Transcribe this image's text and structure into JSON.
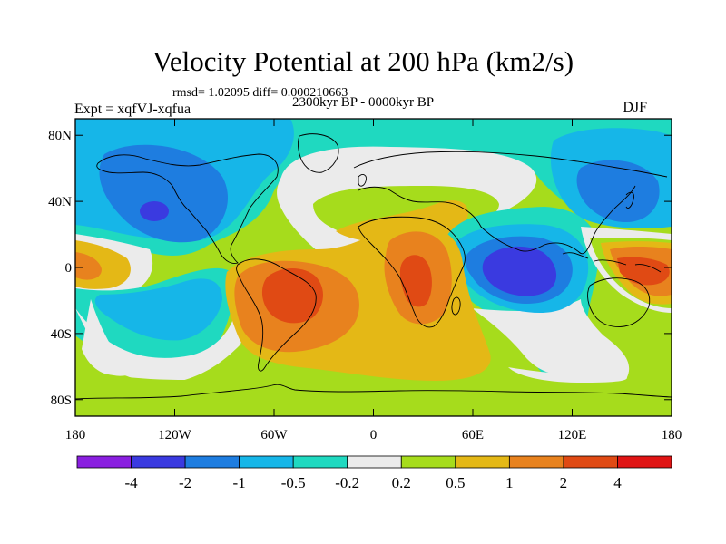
{
  "chart_data": {
    "type": "heatmap",
    "title": "Velocity Potential at 200 hPa (km2/s)",
    "stats": "rmsd= 1.02095 diff= 0.000210663",
    "experiment": "Expt = xqfVJ-xqfua",
    "period": "2300kyr BP - 0000kyr BP",
    "season": "DJF",
    "x_ticks": [
      "180",
      "120W",
      "60W",
      "0",
      "60E",
      "120E",
      "180"
    ],
    "y_ticks": [
      "80N",
      "40N",
      "0",
      "40S",
      "80S"
    ],
    "colorbar": {
      "levels": [
        "-4",
        "-2",
        "-1",
        "-0.5",
        "-0.2",
        "0.2",
        "0.5",
        "1",
        "2",
        "4"
      ],
      "colors": [
        "#8a1fe0",
        "#3a3ae0",
        "#1e7de0",
        "#16b6e8",
        "#1fd9c0",
        "#ebebeb",
        "#a6dc1c",
        "#e4b816",
        "#e8821e",
        "#e04a14",
        "#e01414"
      ]
    },
    "features": [
      {
        "name": "negative-center-north-pacific",
        "lon": -140,
        "lat": 35,
        "value": -2
      },
      {
        "name": "negative-center-indian-ocean",
        "lon": 85,
        "lat": 5,
        "value": -2
      },
      {
        "name": "negative-north-atlantic-arctic",
        "lon": 30,
        "lat": 75,
        "value": -0.5
      },
      {
        "name": "negative-north-pacific-east",
        "lon": 150,
        "lat": 50,
        "value": -1
      },
      {
        "name": "positive-center-south-america",
        "lon": -50,
        "lat": -15,
        "value": 2
      },
      {
        "name": "positive-center-africa",
        "lon": 30,
        "lat": -10,
        "value": 2
      },
      {
        "name": "positive-center-maritime-continent",
        "lon": 160,
        "lat": 0,
        "value": 2
      },
      {
        "name": "positive-center-date-line-west",
        "lon": -175,
        "lat": 0,
        "value": 1
      }
    ]
  }
}
